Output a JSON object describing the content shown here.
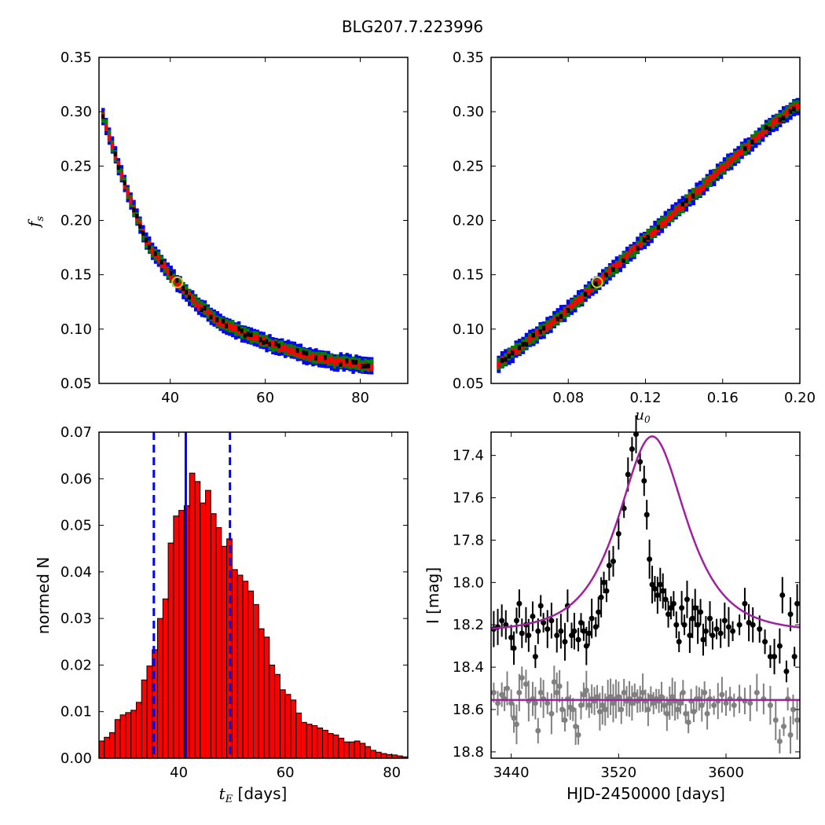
{
  "title": "BLG207.7.223996",
  "colors": {
    "blue": "#0000ff",
    "green": "#008000",
    "red": "#ff0000",
    "black": "#000000",
    "marker": "#d4c82a",
    "model": "#a020a0",
    "gray": "#808080",
    "hist": "#ff0000"
  },
  "panels": {
    "top_left": {
      "ylabel_main": "f",
      "ylabel_sub": "s",
      "xticks": [
        "40",
        "60",
        "80"
      ],
      "yticks": [
        "0.35",
        "0.30",
        "0.25",
        "0.20",
        "0.15",
        "0.10",
        "0.05"
      ]
    },
    "top_right": {
      "xlabel_main": "u",
      "xlabel_sub": "0",
      "xticks": [
        "0.08",
        "0.12",
        "0.16",
        "0.20"
      ],
      "yticks": [
        "0.35",
        "0.30",
        "0.25",
        "0.20",
        "0.15",
        "0.10",
        "0.05"
      ]
    },
    "bottom_left": {
      "xlabel_math": "t",
      "xlabel_sub": "E",
      "xlabel_rest": " [days]",
      "ylabel": "normed N",
      "xticks": [
        "40",
        "60",
        "80"
      ],
      "yticks": [
        "0.07",
        "0.06",
        "0.05",
        "0.04",
        "0.03",
        "0.02",
        "0.01",
        "0.00"
      ]
    },
    "bottom_right": {
      "xlabel": "HJD-2450000 [days]",
      "ylabel": "I [mag]",
      "xticks": [
        "3440",
        "3520",
        "3600"
      ],
      "yticks": [
        "17.4",
        "17.6",
        "17.8",
        "18.0",
        "18.2",
        "18.4",
        "18.6",
        "18.8"
      ]
    }
  },
  "chart_data": [
    {
      "type": "heatmap",
      "xlabel": "",
      "ylabel": "f_s",
      "xlim": [
        25,
        90
      ],
      "ylim": [
        0.05,
        0.35
      ],
      "best_fit": {
        "x": 41.5,
        "y": 0.143
      },
      "ridge": [
        [
          25.5,
          0.3
        ],
        [
          28,
          0.265
        ],
        [
          31,
          0.225
        ],
        [
          35,
          0.18
        ],
        [
          40,
          0.15
        ],
        [
          45,
          0.125
        ],
        [
          50,
          0.108
        ],
        [
          55,
          0.097
        ],
        [
          60,
          0.088
        ],
        [
          65,
          0.081
        ],
        [
          70,
          0.074
        ],
        [
          75,
          0.07
        ],
        [
          82,
          0.066
        ]
      ],
      "confidence_levels": [
        "1-sigma (red)",
        "2-sigma (green)",
        "3-sigma (blue)"
      ]
    },
    {
      "type": "heatmap",
      "xlabel": "u_0",
      "ylabel": "",
      "xlim": [
        0.04,
        0.2
      ],
      "ylim": [
        0.05,
        0.35
      ],
      "best_fit": {
        "x": 0.095,
        "y": 0.143
      },
      "ridge": [
        [
          0.043,
          0.067
        ],
        [
          0.06,
          0.09
        ],
        [
          0.08,
          0.118
        ],
        [
          0.1,
          0.15
        ],
        [
          0.12,
          0.183
        ],
        [
          0.14,
          0.215
        ],
        [
          0.16,
          0.248
        ],
        [
          0.18,
          0.28
        ],
        [
          0.198,
          0.305
        ]
      ],
      "confidence_levels": [
        "1-sigma (red)",
        "2-sigma (green)",
        "3-sigma (blue)"
      ]
    },
    {
      "type": "bar",
      "xlabel": "t_E [days]",
      "ylabel": "normed N",
      "xlim": [
        25,
        83
      ],
      "ylim": [
        0,
        0.07
      ],
      "bin_start": 25,
      "bin_width": 1,
      "values": [
        0.0037,
        0.0045,
        0.0055,
        0.0083,
        0.0093,
        0.0098,
        0.0103,
        0.012,
        0.0168,
        0.0198,
        0.0233,
        0.03,
        0.0342,
        0.0462,
        0.052,
        0.0532,
        0.0542,
        0.0612,
        0.0594,
        0.0548,
        0.0575,
        0.0525,
        0.0495,
        0.0455,
        0.0471,
        0.0405,
        0.0393,
        0.038,
        0.0359,
        0.033,
        0.0278,
        0.026,
        0.02,
        0.018,
        0.0147,
        0.0137,
        0.0125,
        0.0097,
        0.0077,
        0.0073,
        0.007,
        0.0065,
        0.006,
        0.0053,
        0.005,
        0.0043,
        0.0035,
        0.0035,
        0.0037,
        0.0032,
        0.0025,
        0.0017,
        0.0013,
        0.001,
        0.0008,
        0.0007,
        0.0005,
        0.0003
      ],
      "vlines": [
        {
          "x": 41.3,
          "style": "solid"
        },
        {
          "x": 35.3,
          "style": "dashed"
        },
        {
          "x": 49.6,
          "style": "dashed"
        }
      ]
    },
    {
      "type": "scatter",
      "xlabel": "HJD-2450000 [days]",
      "ylabel": "I [mag]",
      "xlim": [
        3425,
        3655
      ],
      "ylim": [
        18.83,
        17.29
      ],
      "y_inverted": true,
      "model": {
        "t0": 3545,
        "peak_mag": 17.31,
        "base_mag": 18.235,
        "u0": 0.095,
        "tE": 41.5
      },
      "comparison_level": 18.555,
      "event_points": [
        [
          3427,
          18.22
        ],
        [
          3430,
          18.21
        ],
        [
          3433,
          18.18
        ],
        [
          3436,
          18.2
        ],
        [
          3440,
          18.26
        ],
        [
          3442,
          18.31
        ],
        [
          3444,
          18.18
        ],
        [
          3446,
          18.1
        ],
        [
          3448,
          18.24
        ],
        [
          3451,
          18.2
        ],
        [
          3453,
          18.25
        ],
        [
          3456,
          18.16
        ],
        [
          3458,
          18.35
        ],
        [
          3460,
          18.23
        ],
        [
          3462,
          18.11
        ],
        [
          3464,
          18.19
        ],
        [
          3467,
          18.22
        ],
        [
          3470,
          18.18
        ],
        [
          3474,
          18.25
        ],
        [
          3477,
          18.23
        ],
        [
          3480,
          18.28
        ],
        [
          3482,
          18.11
        ],
        [
          3485,
          18.25
        ],
        [
          3487,
          18.23
        ],
        [
          3490,
          18.27
        ],
        [
          3492,
          18.19
        ],
        [
          3494,
          18.23
        ],
        [
          3496,
          18.3
        ],
        [
          3498,
          18.24
        ],
        [
          3500,
          18.17
        ],
        [
          3503,
          18.21
        ],
        [
          3505,
          18.14
        ],
        [
          3507,
          18.07
        ],
        [
          3509,
          18.0
        ],
        [
          3511,
          18.04
        ],
        [
          3513,
          17.92
        ],
        [
          3516,
          17.9
        ],
        [
          3520,
          17.77
        ],
        [
          3524,
          17.65
        ],
        [
          3527,
          17.49
        ],
        [
          3530,
          17.37
        ],
        [
          3533,
          17.3
        ],
        [
          3536,
          17.43
        ],
        [
          3539,
          17.52
        ],
        [
          3541,
          17.68
        ],
        [
          3543,
          17.89
        ],
        [
          3545,
          18.01
        ],
        [
          3547,
          18.03
        ],
        [
          3549,
          18.06
        ],
        [
          3551,
          18.01
        ],
        [
          3553,
          18.04
        ],
        [
          3555,
          18.08
        ],
        [
          3557,
          18.15
        ],
        [
          3559,
          18.12
        ],
        [
          3561,
          18.1
        ],
        [
          3563,
          18.2
        ],
        [
          3565,
          18.28
        ],
        [
          3567,
          18.12
        ],
        [
          3569,
          18.2
        ],
        [
          3571,
          18.08
        ],
        [
          3573,
          18.25
        ],
        [
          3575,
          18.17
        ],
        [
          3577,
          18.12
        ],
        [
          3579,
          18.2
        ],
        [
          3581,
          18.14
        ],
        [
          3583,
          18.27
        ],
        [
          3585,
          18.23
        ],
        [
          3588,
          18.17
        ],
        [
          3590,
          18.25
        ],
        [
          3593,
          18.22
        ],
        [
          3596,
          18.24
        ],
        [
          3599,
          18.18
        ],
        [
          3602,
          18.21
        ],
        [
          3605,
          18.23
        ],
        [
          3610,
          18.2
        ],
        [
          3614,
          18.1
        ],
        [
          3617,
          18.19
        ],
        [
          3620,
          18.2
        ],
        [
          3625,
          18.22
        ],
        [
          3629,
          18.28
        ],
        [
          3633,
          18.35
        ],
        [
          3636,
          18.35
        ],
        [
          3640,
          18.3
        ],
        [
          3642,
          18.06
        ],
        [
          3645,
          18.42
        ],
        [
          3648,
          18.15
        ],
        [
          3651,
          18.35
        ],
        [
          3653,
          18.1
        ]
      ],
      "comparison_points": [
        [
          3427,
          18.52
        ],
        [
          3430,
          18.57
        ],
        [
          3433,
          18.53
        ],
        [
          3435,
          18.55
        ],
        [
          3437,
          18.5
        ],
        [
          3440,
          18.57
        ],
        [
          3442,
          18.64
        ],
        [
          3444,
          18.67
        ],
        [
          3446,
          18.52
        ],
        [
          3448,
          18.45
        ],
        [
          3451,
          18.48
        ],
        [
          3453,
          18.56
        ],
        [
          3456,
          18.55
        ],
        [
          3458,
          18.57
        ],
        [
          3460,
          18.7
        ],
        [
          3462,
          18.52
        ],
        [
          3464,
          18.55
        ],
        [
          3467,
          18.57
        ],
        [
          3470,
          18.62
        ],
        [
          3472,
          18.47
        ],
        [
          3474,
          18.52
        ],
        [
          3476,
          18.49
        ],
        [
          3478,
          18.6
        ],
        [
          3480,
          18.65
        ],
        [
          3482,
          18.55
        ],
        [
          3484,
          18.59
        ],
        [
          3486,
          18.6
        ],
        [
          3488,
          18.68
        ],
        [
          3490,
          18.72
        ],
        [
          3492,
          18.58
        ],
        [
          3494,
          18.53
        ],
        [
          3496,
          18.51
        ],
        [
          3498,
          18.58
        ],
        [
          3500,
          18.55
        ],
        [
          3502,
          18.56
        ],
        [
          3504,
          18.54
        ],
        [
          3506,
          18.61
        ],
        [
          3508,
          18.58
        ],
        [
          3510,
          18.6
        ],
        [
          3512,
          18.55
        ],
        [
          3514,
          18.54
        ],
        [
          3516,
          18.57
        ],
        [
          3518,
          18.55
        ],
        [
          3520,
          18.54
        ],
        [
          3522,
          18.6
        ],
        [
          3524,
          18.52
        ],
        [
          3526,
          18.56
        ],
        [
          3528,
          18.55
        ],
        [
          3530,
          18.57
        ],
        [
          3532,
          18.53
        ],
        [
          3534,
          18.56
        ],
        [
          3536,
          18.55
        ],
        [
          3538,
          18.52
        ],
        [
          3540,
          18.56
        ],
        [
          3542,
          18.6
        ],
        [
          3544,
          18.54
        ],
        [
          3546,
          18.57
        ],
        [
          3548,
          18.55
        ],
        [
          3550,
          18.56
        ],
        [
          3552,
          18.54
        ],
        [
          3554,
          18.58
        ],
        [
          3556,
          18.62
        ],
        [
          3558,
          18.57
        ],
        [
          3560,
          18.54
        ],
        [
          3562,
          18.56
        ],
        [
          3564,
          18.6
        ],
        [
          3566,
          18.57
        ],
        [
          3568,
          18.52
        ],
        [
          3570,
          18.62
        ],
        [
          3572,
          18.66
        ],
        [
          3574,
          18.56
        ],
        [
          3576,
          18.61
        ],
        [
          3578,
          18.55
        ],
        [
          3580,
          18.55
        ],
        [
          3582,
          18.58
        ],
        [
          3584,
          18.52
        ],
        [
          3586,
          18.62
        ],
        [
          3588,
          18.55
        ],
        [
          3591,
          18.58
        ],
        [
          3594,
          18.56
        ],
        [
          3597,
          18.53
        ],
        [
          3600,
          18.57
        ],
        [
          3603,
          18.55
        ],
        [
          3606,
          18.58
        ],
        [
          3610,
          18.55
        ],
        [
          3614,
          18.56
        ],
        [
          3618,
          18.57
        ],
        [
          3623,
          18.52
        ],
        [
          3628,
          18.55
        ],
        [
          3633,
          18.58
        ],
        [
          3637,
          18.65
        ],
        [
          3640,
          18.75
        ],
        [
          3643,
          18.68
        ],
        [
          3646,
          18.55
        ],
        [
          3648,
          18.72
        ],
        [
          3650,
          18.6
        ],
        [
          3653,
          18.65
        ]
      ]
    }
  ]
}
